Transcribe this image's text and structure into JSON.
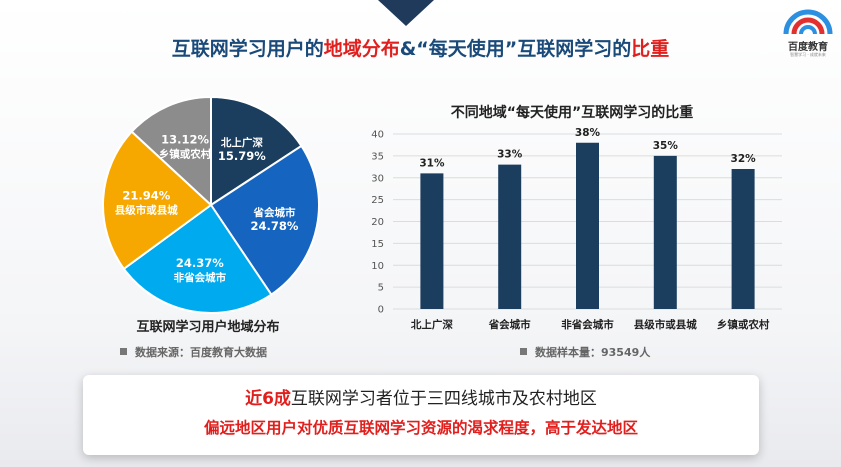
{
  "header": {
    "title_part1": "互联网学习用户的",
    "title_part2": "地域分布",
    "title_part3": "&“每天使用”互联网学习的",
    "title_part4": "比重"
  },
  "logo": {
    "name": "百度教育",
    "slogan": "智慧学习 · 成就未来"
  },
  "pie": {
    "caption": "互联网学习用户地域分布",
    "source": "数据来源：百度教育大数据",
    "slices": [
      {
        "label": "北上广深",
        "percent": "15.79%",
        "value": 15.79,
        "color": "#1b3d5e"
      },
      {
        "label": "省会城市",
        "percent": "24.78%",
        "value": 24.78,
        "color": "#1565c0"
      },
      {
        "label": "非省会城市",
        "percent": "24.37%",
        "value": 24.37,
        "color": "#00aaee"
      },
      {
        "label": "县级市或县城",
        "percent": "21.94%",
        "value": 21.94,
        "color": "#f6a800"
      },
      {
        "label": "乡镇或农村",
        "percent": "13.12%",
        "value": 13.12,
        "color": "#8c8c8c"
      }
    ]
  },
  "chart_data": {
    "type": "bar",
    "title": "不同地域“每天使用”互联网学习的比重",
    "categories": [
      "北上广深",
      "省会城市",
      "非省会城市",
      "县级市或县城",
      "乡镇或农村"
    ],
    "values": [
      31,
      33,
      38,
      35,
      32
    ],
    "value_labels": [
      "31%",
      "33%",
      "38%",
      "35%",
      "32%"
    ],
    "ylim": [
      0,
      40
    ],
    "yticks": [
      "0",
      "5",
      "10",
      "15",
      "20",
      "25",
      "30",
      "35",
      "40"
    ],
    "grid": true,
    "bar_color": "#1b3d5e",
    "note": "数据样本量：93549人"
  },
  "banner": {
    "line1_highlight": "近6成",
    "line1_rest": "互联网学习者位于三四线城市及农村地区",
    "line2": "偏远地区用户对优质互联网学习资源的渴求程度，高于发达地区"
  }
}
